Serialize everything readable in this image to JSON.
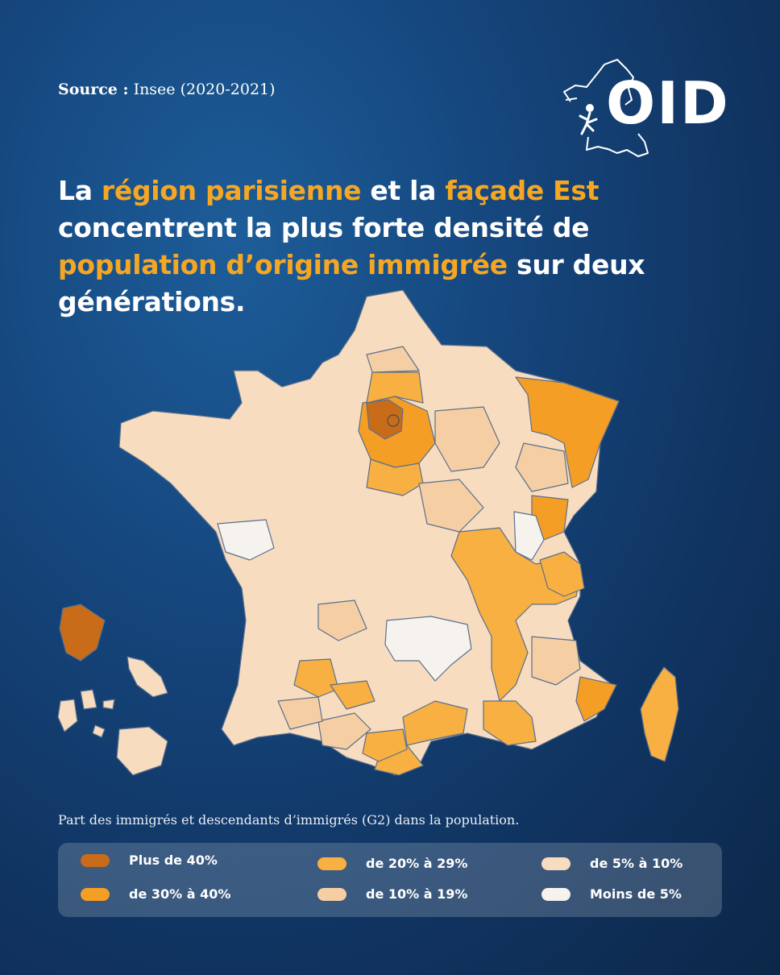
{
  "source": {
    "label": "Source :",
    "text": "Insee (2020-2021)"
  },
  "logo": {
    "text": "OID"
  },
  "headline": {
    "p1": "La ",
    "h1": "région parisienne",
    "p2": " et la ",
    "h2": "façade Est",
    "p3": " concentrent la plus forte densité de ",
    "h3": "population d’origine immigrée",
    "p4": " sur deux générations."
  },
  "caption": "Part des immigrés et descendants d’immigrés (G2) dans la population.",
  "colors": {
    "plus_40": "#c96c1a",
    "30_40": "#f59e25",
    "20_29": "#f7b041",
    "10_19": "#f5cfa3",
    "5_10": "#f7dcc0",
    "moins_5": "#f6f2ee",
    "highlight": "#f5a623"
  },
  "legend": [
    {
      "label": "Plus de 40%",
      "color": "#c96c1a"
    },
    {
      "label": "de 30%  à 40%",
      "color": "#f59e25"
    },
    {
      "label": "de 20% à 29%",
      "color": "#f7b041"
    },
    {
      "label": "de 10% à 19%",
      "color": "#f5cfa3"
    },
    {
      "label": "de 5% à 10%",
      "color": "#f7dcc0"
    },
    {
      "label": "Moins de 5%",
      "color": "#f6f2ee"
    }
  ]
}
